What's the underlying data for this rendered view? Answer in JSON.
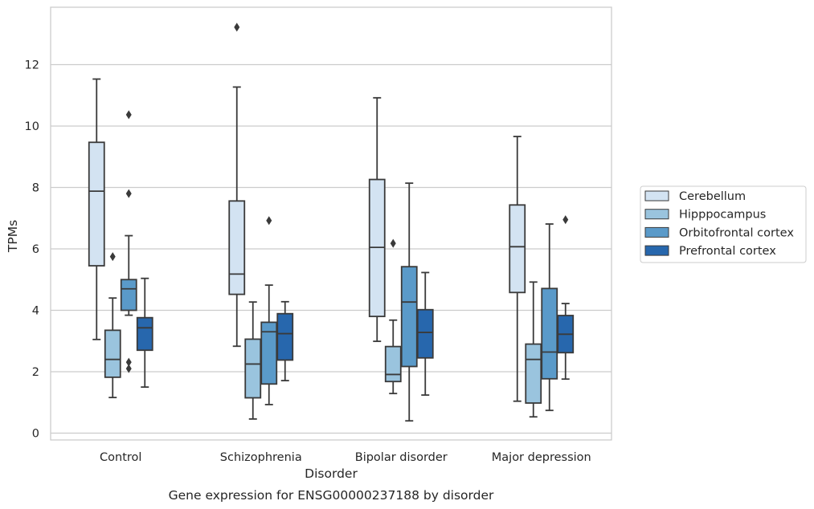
{
  "chart_data": {
    "type": "box",
    "title": "",
    "caption": "Gene expression for ENSG00000237188 by disorder",
    "xlabel": "Disorder",
    "ylabel": "TPMs",
    "ylim": [
      -0.2,
      13.6
    ],
    "yticks": [
      0,
      2,
      4,
      6,
      8,
      10,
      12
    ],
    "grid": "horizontal",
    "legend_position": "right",
    "categories": [
      "Control",
      "Schizophrenia",
      "Bipolar disorder",
      "Major depression"
    ],
    "series": [
      {
        "name": "Cerebellum",
        "color": "#d3e3f2",
        "boxes": [
          {
            "whislo": 3.05,
            "q1": 5.45,
            "med": 7.88,
            "q3": 9.47,
            "whishi": 11.53,
            "fliers": []
          },
          {
            "whislo": 2.83,
            "q1": 4.52,
            "med": 5.18,
            "q3": 7.56,
            "whishi": 11.27,
            "fliers": [
              13.22
            ]
          },
          {
            "whislo": 2.99,
            "q1": 3.8,
            "med": 6.05,
            "q3": 8.26,
            "whishi": 10.92,
            "fliers": []
          },
          {
            "whislo": 1.04,
            "q1": 4.58,
            "med": 6.07,
            "q3": 7.43,
            "whishi": 9.66,
            "fliers": []
          }
        ]
      },
      {
        "name": "Hipppocampus",
        "color": "#9ac4de",
        "boxes": [
          {
            "whislo": 1.16,
            "q1": 1.82,
            "med": 2.4,
            "q3": 3.35,
            "whishi": 4.4,
            "fliers": [
              5.75
            ]
          },
          {
            "whislo": 0.46,
            "q1": 1.15,
            "med": 2.25,
            "q3": 3.06,
            "whishi": 4.27,
            "fliers": []
          },
          {
            "whislo": 1.29,
            "q1": 1.68,
            "med": 1.91,
            "q3": 2.82,
            "whishi": 3.68,
            "fliers": [
              6.18
            ]
          },
          {
            "whislo": 0.53,
            "q1": 0.98,
            "med": 2.4,
            "q3": 2.9,
            "whishi": 4.92,
            "fliers": []
          }
        ]
      },
      {
        "name": "Orbitofrontal cortex",
        "color": "#5a9ac9",
        "boxes": [
          {
            "whislo": 3.84,
            "q1": 4.0,
            "med": 4.7,
            "q3": 5.0,
            "whishi": 6.43,
            "fliers": [
              10.37,
              7.8,
              2.31,
              2.1
            ]
          },
          {
            "whislo": 0.93,
            "q1": 1.6,
            "med": 3.3,
            "q3": 3.61,
            "whishi": 4.82,
            "fliers": [
              6.92
            ]
          },
          {
            "whislo": 0.4,
            "q1": 2.17,
            "med": 4.27,
            "q3": 5.42,
            "whishi": 8.14,
            "fliers": []
          },
          {
            "whislo": 0.74,
            "q1": 1.77,
            "med": 2.64,
            "q3": 4.71,
            "whishi": 6.81,
            "fliers": []
          }
        ]
      },
      {
        "name": "Prefrontal cortex",
        "color": "#2767ad",
        "boxes": [
          {
            "whislo": 1.5,
            "q1": 2.7,
            "med": 3.43,
            "q3": 3.76,
            "whishi": 5.04,
            "fliers": []
          },
          {
            "whislo": 1.71,
            "q1": 2.38,
            "med": 3.24,
            "q3": 3.89,
            "whishi": 4.28,
            "fliers": []
          },
          {
            "whislo": 1.24,
            "q1": 2.45,
            "med": 3.28,
            "q3": 4.02,
            "whishi": 5.23,
            "fliers": []
          },
          {
            "whislo": 1.76,
            "q1": 2.62,
            "med": 3.22,
            "q3": 3.83,
            "whishi": 4.22,
            "fliers": [
              6.95
            ]
          }
        ]
      }
    ]
  }
}
